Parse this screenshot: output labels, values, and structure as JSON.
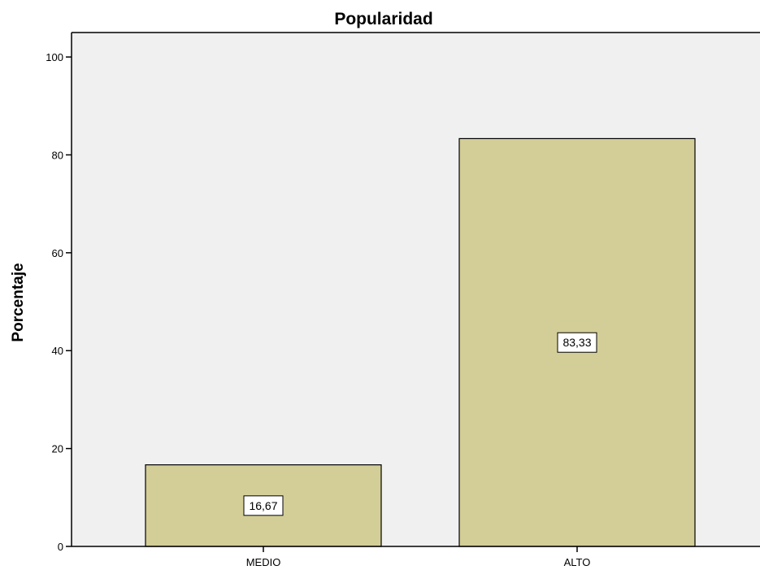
{
  "chart_data": {
    "type": "bar",
    "title": "Popularidad",
    "xlabel": "",
    "ylabel": "Porcentaje",
    "categories": [
      "MEDIO",
      "ALTO"
    ],
    "values": [
      16.67,
      83.33
    ],
    "data_labels": [
      "16,67",
      "83,33"
    ],
    "ylim": [
      0,
      105
    ],
    "yticks": [
      0,
      20,
      40,
      60,
      80,
      100
    ],
    "ytick_labels": [
      "0",
      "20",
      "40",
      "60",
      "80",
      "100"
    ],
    "grid": false,
    "legend": "none",
    "colors": {
      "plot_background": "#f0f0f0",
      "bar_fill": "#d3ce97",
      "bar_stroke": "#000000",
      "axis": "#000000"
    }
  }
}
